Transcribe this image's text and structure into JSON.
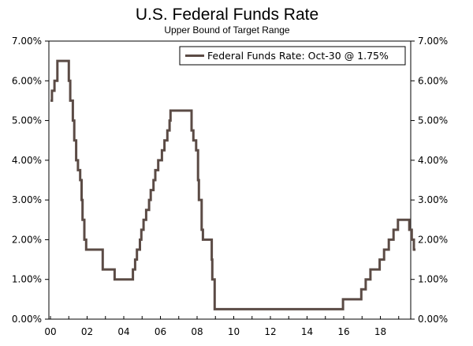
{
  "chart_data": {
    "type": "line",
    "title": "U.S. Federal Funds Rate",
    "subtitle": "Upper Bound of Target Range",
    "xlabel": "",
    "ylabel": "",
    "xlim": [
      2000,
      2019.92
    ],
    "ylim": [
      0,
      7
    ],
    "grid": false,
    "legend_position": "top-right",
    "x_ticks": [
      2000,
      2002,
      2004,
      2006,
      2008,
      2010,
      2012,
      2014,
      2016,
      2018
    ],
    "x_tick_labels": [
      "00",
      "02",
      "04",
      "06",
      "08",
      "10",
      "12",
      "14",
      "16",
      "18"
    ],
    "y_ticks": [
      0,
      1,
      2,
      3,
      4,
      5,
      6,
      7
    ],
    "y_tick_labels_left": [
      "0.00%",
      "1.00%",
      "2.00%",
      "3.00%",
      "4.00%",
      "5.00%",
      "6.00%",
      "7.00%"
    ],
    "y_tick_labels_right": [
      "0.00%",
      "1.00%",
      "2.00%",
      "3.00%",
      "4.00%",
      "5.00%",
      "6.00%",
      "7.00%"
    ],
    "series": [
      {
        "name": "Federal Funds Rate: Oct-30 @ 1.75%",
        "color": "#5b4b45",
        "points": [
          [
            2000.0,
            5.5
          ],
          [
            2000.08,
            5.75
          ],
          [
            2000.22,
            6.0
          ],
          [
            2000.38,
            6.5
          ],
          [
            2001.0,
            6.0
          ],
          [
            2001.08,
            5.5
          ],
          [
            2001.22,
            5.0
          ],
          [
            2001.3,
            4.5
          ],
          [
            2001.4,
            4.0
          ],
          [
            2001.5,
            3.75
          ],
          [
            2001.62,
            3.5
          ],
          [
            2001.7,
            3.0
          ],
          [
            2001.75,
            2.5
          ],
          [
            2001.85,
            2.0
          ],
          [
            2001.95,
            1.75
          ],
          [
            2002.85,
            1.25
          ],
          [
            2003.5,
            1.0
          ],
          [
            2004.5,
            1.25
          ],
          [
            2004.62,
            1.5
          ],
          [
            2004.72,
            1.75
          ],
          [
            2004.88,
            2.0
          ],
          [
            2004.96,
            2.25
          ],
          [
            2005.08,
            2.5
          ],
          [
            2005.22,
            2.75
          ],
          [
            2005.38,
            3.0
          ],
          [
            2005.47,
            3.25
          ],
          [
            2005.62,
            3.5
          ],
          [
            2005.72,
            3.75
          ],
          [
            2005.88,
            4.0
          ],
          [
            2006.08,
            4.25
          ],
          [
            2006.22,
            4.5
          ],
          [
            2006.38,
            4.75
          ],
          [
            2006.5,
            5.0
          ],
          [
            2006.55,
            5.25
          ],
          [
            2007.7,
            4.75
          ],
          [
            2007.8,
            4.5
          ],
          [
            2007.95,
            4.25
          ],
          [
            2008.05,
            3.5
          ],
          [
            2008.1,
            3.0
          ],
          [
            2008.25,
            2.25
          ],
          [
            2008.32,
            2.0
          ],
          [
            2008.8,
            1.5
          ],
          [
            2008.83,
            1.0
          ],
          [
            2008.96,
            0.25
          ],
          [
            2015.96,
            0.5
          ],
          [
            2016.96,
            0.75
          ],
          [
            2017.2,
            1.0
          ],
          [
            2017.46,
            1.25
          ],
          [
            2017.96,
            1.5
          ],
          [
            2018.2,
            1.75
          ],
          [
            2018.46,
            2.0
          ],
          [
            2018.72,
            2.25
          ],
          [
            2018.96,
            2.5
          ],
          [
            2019.58,
            2.25
          ],
          [
            2019.71,
            2.0
          ],
          [
            2019.83,
            1.75
          ],
          [
            2019.92,
            1.75
          ]
        ]
      }
    ]
  }
}
